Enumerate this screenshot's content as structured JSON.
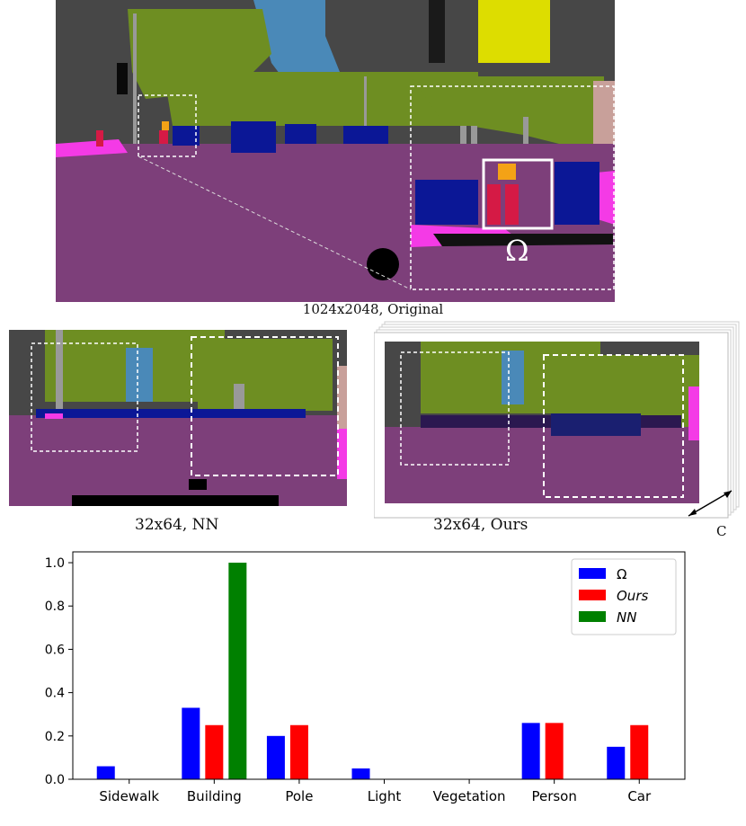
{
  "panels": {
    "original": {
      "caption": "1024x2048, Original",
      "region_label": "Ω"
    },
    "nn": {
      "caption": "32x64, NN"
    },
    "ours": {
      "caption": "32x64, Ours",
      "channel_label": "C"
    }
  },
  "colors": {
    "road": "#7d3f7a",
    "building": "#474747",
    "sky": "#4a89b8",
    "vegetation": "#6e8e22",
    "car": "#0b1796",
    "person": "#d51a45",
    "sidewalk": "#f43ae6",
    "sign": "#dddd00",
    "pole": "#999999",
    "light": "#f4a216",
    "wall": "#c8a09a",
    "fence": "#6870a0"
  },
  "chart_data": {
    "type": "bar",
    "categories": [
      "Sidewalk",
      "Building",
      "Pole",
      "Light",
      "Vegetation",
      "Person",
      "Car"
    ],
    "series": [
      {
        "name": "Ω",
        "color": "#0000ff",
        "values": [
          0.06,
          0.33,
          0.2,
          0.05,
          0.0,
          0.26,
          0.15
        ]
      },
      {
        "name": "Ours",
        "color": "#ff0000",
        "values": [
          0.0,
          0.25,
          0.25,
          0.0,
          0.0,
          0.26,
          0.25
        ]
      },
      {
        "name": "NN",
        "color": "#008000",
        "values": [
          0.0,
          1.0,
          0.0,
          0.0,
          0.0,
          0.0,
          0.0
        ]
      }
    ],
    "ylim": [
      0,
      1.05
    ],
    "yticks": [
      "0.0",
      "0.2",
      "0.4",
      "0.6",
      "0.8",
      "1.0"
    ],
    "legend": "top-right",
    "grid": false
  }
}
